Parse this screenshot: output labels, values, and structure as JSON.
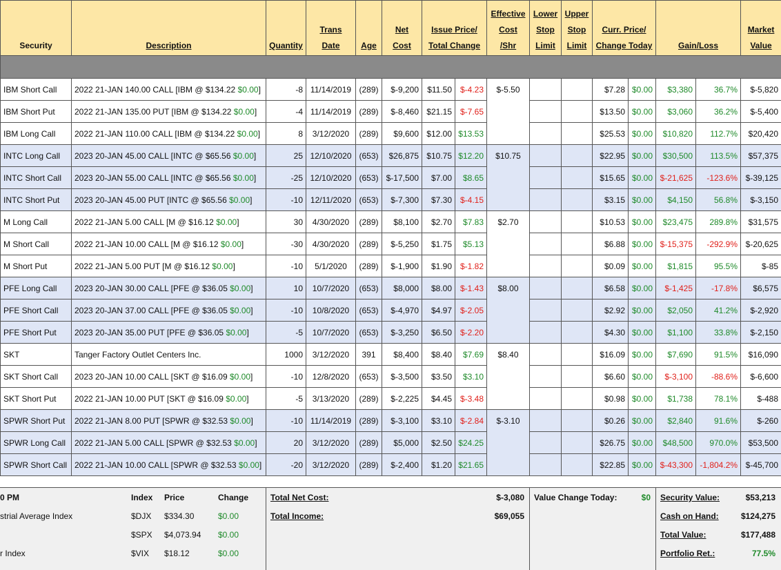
{
  "header": [
    {
      "lines": [
        "Security"
      ]
    },
    {
      "lines": [
        "Description"
      ]
    },
    {
      "lines": [
        "Quantity"
      ]
    },
    {
      "lines": [
        "Trans",
        "Date"
      ]
    },
    {
      "lines": [
        "Age"
      ]
    },
    {
      "lines": [
        "Net",
        "Cost"
      ]
    },
    {
      "lines": [
        "Issue Price/",
        "Total Change"
      ]
    },
    {
      "lines": [
        "Effective",
        "Cost",
        "/Shr"
      ]
    },
    {
      "lines": [
        "Lower",
        "Stop",
        "Limit"
      ]
    },
    {
      "lines": [
        "Upper",
        "Stop",
        "Limit"
      ]
    },
    {
      "lines": [
        "Curr. Price/",
        "Change Today"
      ]
    },
    {
      "lines": [
        "Gain/Loss"
      ]
    },
    {
      "lines": [
        "Market",
        "Value"
      ]
    }
  ],
  "groups": [
    {
      "effective_cost": "$-5.50",
      "rows": [
        {
          "security": "IBM Short Call",
          "desc": "2022 21-JAN 140.00 CALL [IBM @ $134.22",
          "desc_change": "$0.00",
          "desc_close": "]",
          "qty": "-8",
          "date": "11/14/2019",
          "age": "(289)",
          "net_cost": "$-9,200",
          "issue_price": "$11.50",
          "total_change": "$-4.23",
          "curr_price": "$7.28",
          "change_today": "$0.00",
          "gain": "$3,380",
          "gain_pct": "36.7%",
          "market_value": "$-5,820"
        },
        {
          "security": "IBM Short Put",
          "desc": "2022 21-JAN 135.00 PUT [IBM @ $134.22",
          "desc_change": "$0.00",
          "desc_close": "]",
          "qty": "-4",
          "date": "11/14/2019",
          "age": "(289)",
          "net_cost": "$-8,460",
          "issue_price": "$21.15",
          "total_change": "$-7.65",
          "curr_price": "$13.50",
          "change_today": "$0.00",
          "gain": "$3,060",
          "gain_pct": "36.2%",
          "market_value": "$-5,400"
        },
        {
          "security": "IBM Long Call",
          "desc": "2022 21-JAN 110.00 CALL [IBM @ $134.22",
          "desc_change": "$0.00",
          "desc_close": "]",
          "qty": "8",
          "date": "3/12/2020",
          "age": "(289)",
          "net_cost": "$9,600",
          "issue_price": "$12.00",
          "total_change": "$13.53",
          "curr_price": "$25.53",
          "change_today": "$0.00",
          "gain": "$10,820",
          "gain_pct": "112.7%",
          "market_value": "$20,420"
        }
      ]
    },
    {
      "effective_cost": "$10.75",
      "rows": [
        {
          "security": "INTC Long Call",
          "desc": "2023 20-JAN 45.00 CALL [INTC @ $65.56",
          "desc_change": "$0.00",
          "desc_close": "]",
          "qty": "25",
          "date": "12/10/2020",
          "age": "(653)",
          "net_cost": "$26,875",
          "issue_price": "$10.75",
          "total_change": "$12.20",
          "curr_price": "$22.95",
          "change_today": "$0.00",
          "gain": "$30,500",
          "gain_pct": "113.5%",
          "market_value": "$57,375"
        },
        {
          "security": "INTC Short Call",
          "desc": "2023 20-JAN 55.00 CALL [INTC @ $65.56",
          "desc_change": "$0.00",
          "desc_close": "]",
          "qty": "-25",
          "date": "12/10/2020",
          "age": "(653)",
          "net_cost": "$-17,500",
          "issue_price": "$7.00",
          "total_change": "$8.65",
          "curr_price": "$15.65",
          "change_today": "$0.00",
          "gain": "$-21,625",
          "gain_pct": "-123.6%",
          "market_value": "$-39,125"
        },
        {
          "security": "INTC Short Put",
          "desc": "2023 20-JAN 45.00 PUT [INTC @ $65.56",
          "desc_change": "$0.00",
          "desc_close": "]",
          "qty": "-10",
          "date": "12/11/2020",
          "age": "(653)",
          "net_cost": "$-7,300",
          "issue_price": "$7.30",
          "total_change": "$-4.15",
          "curr_price": "$3.15",
          "change_today": "$0.00",
          "gain": "$4,150",
          "gain_pct": "56.8%",
          "market_value": "$-3,150"
        }
      ]
    },
    {
      "effective_cost": "$2.70",
      "rows": [
        {
          "security": "M Long Call",
          "desc": "2022 21-JAN 5.00 CALL [M @ $16.12",
          "desc_change": "$0.00",
          "desc_close": "]",
          "qty": "30",
          "date": "4/30/2020",
          "age": "(289)",
          "net_cost": "$8,100",
          "issue_price": "$2.70",
          "total_change": "$7.83",
          "curr_price": "$10.53",
          "change_today": "$0.00",
          "gain": "$23,475",
          "gain_pct": "289.8%",
          "market_value": "$31,575"
        },
        {
          "security": "M Short Call",
          "desc": "2022 21-JAN 10.00 CALL [M @ $16.12",
          "desc_change": "$0.00",
          "desc_close": "]",
          "qty": "-30",
          "date": "4/30/2020",
          "age": "(289)",
          "net_cost": "$-5,250",
          "issue_price": "$1.75",
          "total_change": "$5.13",
          "curr_price": "$6.88",
          "change_today": "$0.00",
          "gain": "$-15,375",
          "gain_pct": "-292.9%",
          "market_value": "$-20,625"
        },
        {
          "security": "M Short Put",
          "desc": "2022 21-JAN 5.00 PUT [M @ $16.12",
          "desc_change": "$0.00",
          "desc_close": "]",
          "qty": "-10",
          "date": "5/1/2020",
          "age": "(289)",
          "net_cost": "$-1,900",
          "issue_price": "$1.90",
          "total_change": "$-1.82",
          "curr_price": "$0.09",
          "change_today": "$0.00",
          "gain": "$1,815",
          "gain_pct": "95.5%",
          "market_value": "$-85"
        }
      ]
    },
    {
      "effective_cost": "$8.00",
      "rows": [
        {
          "security": "PFE Long Call",
          "desc": "2023 20-JAN 30.00 CALL [PFE @ $36.05",
          "desc_change": "$0.00",
          "desc_close": "]",
          "qty": "10",
          "date": "10/7/2020",
          "age": "(653)",
          "net_cost": "$8,000",
          "issue_price": "$8.00",
          "total_change": "$-1.43",
          "curr_price": "$6.58",
          "change_today": "$0.00",
          "gain": "$-1,425",
          "gain_pct": "-17.8%",
          "market_value": "$6,575"
        },
        {
          "security": "PFE Short Call",
          "desc": "2023 20-JAN 37.00 CALL [PFE @ $36.05",
          "desc_change": "$0.00",
          "desc_close": "]",
          "qty": "-10",
          "date": "10/8/2020",
          "age": "(653)",
          "net_cost": "$-4,970",
          "issue_price": "$4.97",
          "total_change": "$-2.05",
          "curr_price": "$2.92",
          "change_today": "$0.00",
          "gain": "$2,050",
          "gain_pct": "41.2%",
          "market_value": "$-2,920"
        },
        {
          "security": "PFE Short Put",
          "desc": "2023 20-JAN 35.00 PUT [PFE @ $36.05",
          "desc_change": "$0.00",
          "desc_close": "]",
          "qty": "-5",
          "date": "10/7/2020",
          "age": "(653)",
          "net_cost": "$-3,250",
          "issue_price": "$6.50",
          "total_change": "$-2.20",
          "curr_price": "$4.30",
          "change_today": "$0.00",
          "gain": "$1,100",
          "gain_pct": "33.8%",
          "market_value": "$-2,150"
        }
      ]
    },
    {
      "effective_cost": "$8.40",
      "rows": [
        {
          "security": "SKT",
          "desc": "Tanger Factory Outlet Centers Inc.",
          "qty": "1000",
          "date": "3/12/2020",
          "age": "391",
          "net_cost": "$8,400",
          "issue_price": "$8.40",
          "total_change": "$7.69",
          "curr_price": "$16.09",
          "change_today": "$0.00",
          "gain": "$7,690",
          "gain_pct": "91.5%",
          "market_value": "$16,090"
        },
        {
          "security": "SKT Short Call",
          "desc": "2023 20-JAN 10.00 CALL [SKT @ $16.09",
          "desc_change": "$0.00",
          "desc_close": "]",
          "qty": "-10",
          "date": "12/8/2020",
          "age": "(653)",
          "net_cost": "$-3,500",
          "issue_price": "$3.50",
          "total_change": "$3.10",
          "curr_price": "$6.60",
          "change_today": "$0.00",
          "gain": "$-3,100",
          "gain_pct": "-88.6%",
          "market_value": "$-6,600"
        },
        {
          "security": "SKT Short Put",
          "desc": "2022 21-JAN 10.00 PUT [SKT @ $16.09",
          "desc_change": "$0.00",
          "desc_close": "]",
          "qty": "-5",
          "date": "3/13/2020",
          "age": "(289)",
          "net_cost": "$-2,225",
          "issue_price": "$4.45",
          "total_change": "$-3.48",
          "curr_price": "$0.98",
          "change_today": "$0.00",
          "gain": "$1,738",
          "gain_pct": "78.1%",
          "market_value": "$-488"
        }
      ]
    },
    {
      "effective_cost": "$-3.10",
      "rows": [
        {
          "security": "SPWR Short Put",
          "desc": "2022 21-JAN 8.00 PUT [SPWR @ $32.53",
          "desc_change": "$0.00",
          "desc_close": "]",
          "qty": "-10",
          "date": "11/14/2019",
          "age": "(289)",
          "net_cost": "$-3,100",
          "issue_price": "$3.10",
          "total_change": "$-2.84",
          "curr_price": "$0.26",
          "change_today": "$0.00",
          "gain": "$2,840",
          "gain_pct": "91.6%",
          "market_value": "$-260"
        },
        {
          "security": "SPWR Long Call",
          "desc": "2022 21-JAN 5.00 CALL [SPWR @ $32.53",
          "desc_change": "$0.00",
          "desc_close": "]",
          "qty": "20",
          "date": "3/12/2020",
          "age": "(289)",
          "net_cost": "$5,000",
          "issue_price": "$2.50",
          "total_change": "$24.25",
          "curr_price": "$26.75",
          "change_today": "$0.00",
          "gain": "$48,500",
          "gain_pct": "970.0%",
          "market_value": "$53,500"
        },
        {
          "security": "SPWR Short Call",
          "desc": "2022 21-JAN 10.00 CALL [SPWR @ $32.53",
          "desc_change": "$0.00",
          "desc_close": "]",
          "qty": "-20",
          "date": "3/12/2020",
          "age": "(289)",
          "net_cost": "$-2,400",
          "issue_price": "$1.20",
          "total_change": "$21.65",
          "curr_price": "$22.85",
          "change_today": "$0.00",
          "gain": "$-43,300",
          "gain_pct": "-1,804.2%",
          "market_value": "$-45,700"
        }
      ]
    }
  ],
  "footer": {
    "indices": {
      "header": [
        "0 PM",
        "Index",
        "Price",
        "Change"
      ],
      "rows": [
        {
          "name": "strial Average Index",
          "symbol": "$DJX",
          "price": "$334.30",
          "change": "$0.00"
        },
        {
          "symbol": "$SPX",
          "price": "$4,073.94",
          "change": "$0.00"
        },
        {
          "name": "r Index",
          "symbol": "$VIX",
          "price": "$18.12",
          "change": "$0.00"
        }
      ]
    },
    "totals": [
      {
        "label": "Total Net Cost:",
        "value": "$-3,080"
      },
      {
        "label": "Total Income:",
        "value": "$69,055"
      }
    ],
    "value_change": {
      "label": "Value Change Today:",
      "value": "$0"
    },
    "summary": [
      {
        "label": "Security Value:",
        "value": "$53,213"
      },
      {
        "label": "Cash on Hand:",
        "value": "$124,275"
      },
      {
        "label": "Total Value:",
        "value": "$177,488"
      },
      {
        "label": "Portfolio Ret.:",
        "value": "77.5%"
      }
    ]
  }
}
